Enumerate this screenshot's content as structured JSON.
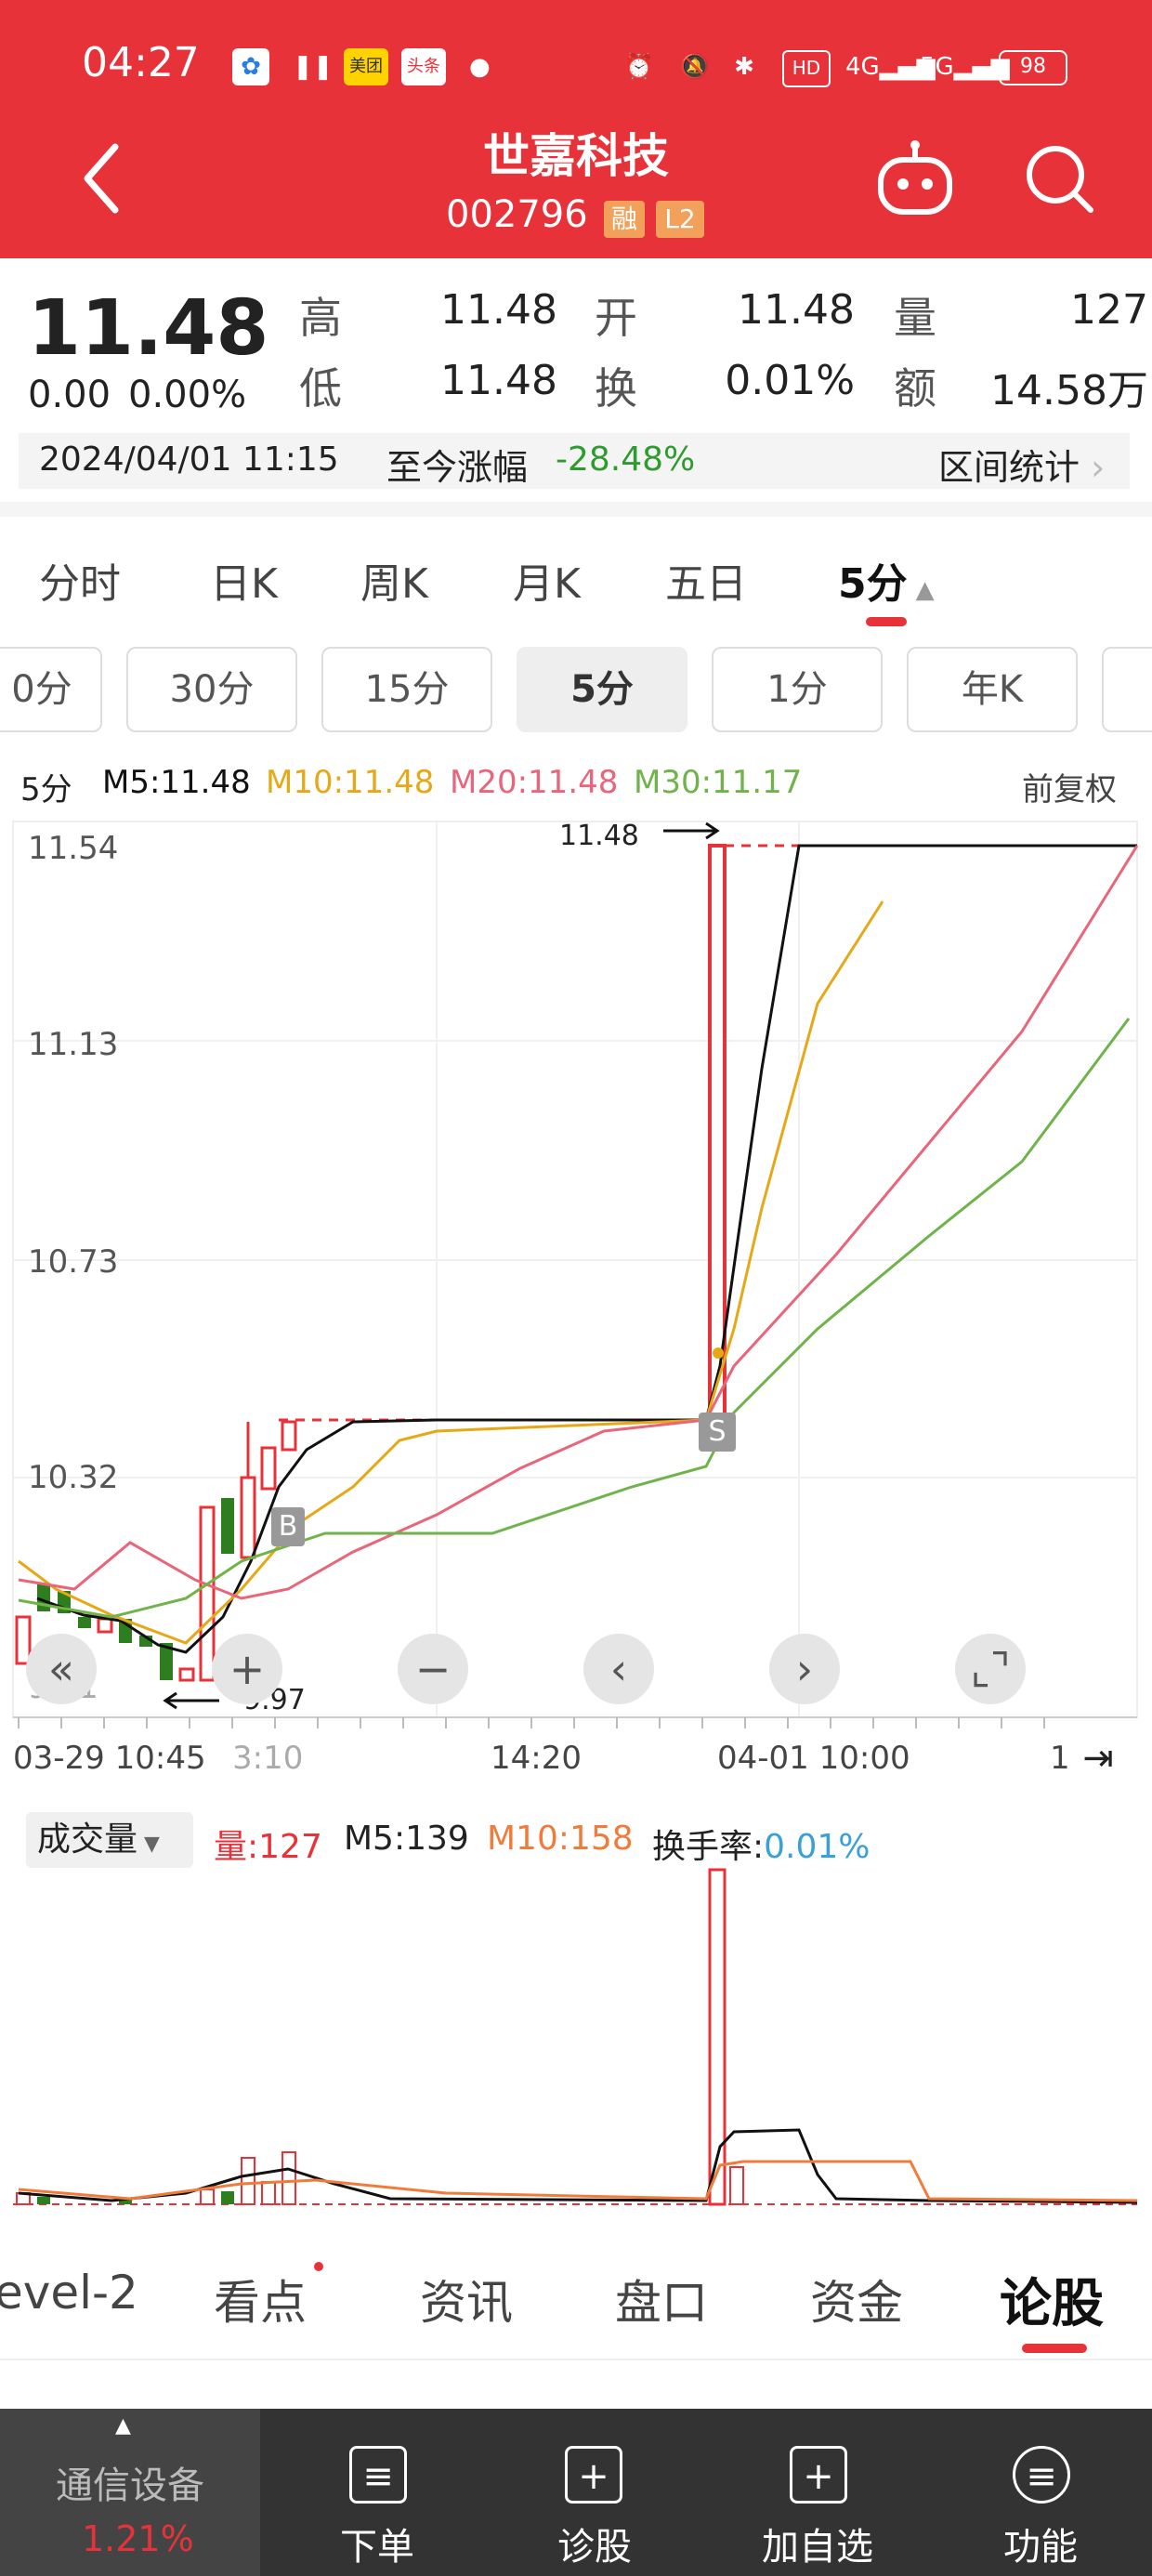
{
  "status_bar": {
    "time": "04:27",
    "hd_badge": "HD",
    "signal_4g": "4G",
    "signal_5g": "5G",
    "battery": "98",
    "app_badges": [
      "美团",
      "头条"
    ]
  },
  "header": {
    "title": "世嘉科技",
    "code": "002796",
    "tags": [
      "融",
      "L2"
    ]
  },
  "quote": {
    "price": "11.48",
    "change": "0.00",
    "change_pct": "0.00%",
    "high_label": "高",
    "high": "11.48",
    "low_label": "低",
    "low": "11.48",
    "open_label": "开",
    "open": "11.48",
    "turnover_label": "换",
    "turnover": "0.01%",
    "volume_label": "量",
    "volume": "127",
    "amount_label": "额",
    "amount": "14.58万",
    "datetime": "2024/04/01 11:15",
    "since_label": "至今涨幅",
    "since_value": "-28.48%",
    "range_stats": "区间统计"
  },
  "period_tabs": [
    "分时",
    "日K",
    "周K",
    "月K",
    "五日",
    "5分"
  ],
  "interval_tabs": [
    "0分",
    "30分",
    "15分",
    "5分",
    "1分",
    "年K"
  ],
  "ma_legend": {
    "period": "5分",
    "m5": "M5:11.48",
    "m10": "M10:11.48",
    "m20": "M20:11.48",
    "m30": "M30:11.17",
    "adjust": "前复权"
  },
  "colors": {
    "up": "#e8323a",
    "down": "#2e7d1f",
    "m5": "#111111",
    "m10": "#e6a817",
    "m20": "#e8657a",
    "m30": "#6fb34a"
  },
  "price_chart": {
    "y_ticks": [
      "11.54",
      "11.13",
      "10.73",
      "10.32",
      "9.91"
    ],
    "high_label": "11.48",
    "low_label": "9.97",
    "x_ticks": [
      "03-29 10:45",
      "3:10",
      "14:20",
      "04-01 10:00",
      "1"
    ],
    "trade_marks": [
      "B",
      "S"
    ]
  },
  "volume_chart": {
    "selector": "成交量",
    "vol": "量:127",
    "m5": "M5:139",
    "m10": "M10:158",
    "turnover_label": "换手率:",
    "turnover": "0.01%"
  },
  "bottom_tabs": [
    "evel-2",
    "看点",
    "资讯",
    "盘口",
    "资金",
    "论股"
  ],
  "toolbar": {
    "sector": "通信设备",
    "sector_pct": "1.21%",
    "items": [
      "下单",
      "诊股",
      "加自选",
      "功能"
    ]
  }
}
